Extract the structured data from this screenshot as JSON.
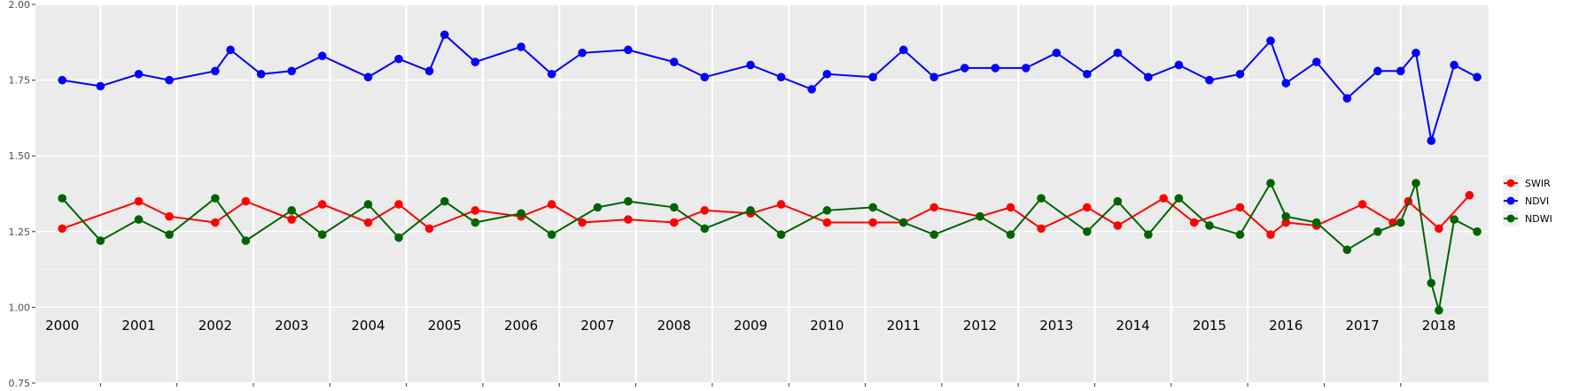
{
  "chart_data": {
    "type": "line",
    "title": "",
    "xlabel": "",
    "ylabel": "",
    "xlim": [
      1999.65,
      2018.65
    ],
    "ylim": [
      0.75,
      2.0
    ],
    "yticks": [
      0.75,
      1.0,
      1.25,
      1.5,
      1.75,
      2.0
    ],
    "ytick_labels": [
      "0.75",
      "1.00",
      "1.25",
      "1.50",
      "1.75",
      "2.00"
    ],
    "year_labels": [
      "2000",
      "2001",
      "2002",
      "2003",
      "2004",
      "2005",
      "2006",
      "2007",
      "2008",
      "2009",
      "2010",
      "2011",
      "2012",
      "2013",
      "2014",
      "2015",
      "2016",
      "2017",
      "2018"
    ],
    "year_label_positions": [
      2000,
      2001,
      2002,
      2003,
      2004,
      2005,
      2006,
      2007,
      2008,
      2009,
      2010,
      2011,
      2012,
      2013,
      2014,
      2015,
      2016,
      2017,
      2018
    ],
    "year_boundaries": [
      2000.5,
      2001.5,
      2002.5,
      2003.5,
      2004.5,
      2005.5,
      2006.5,
      2007.5,
      2008.5,
      2009.5,
      2010.5,
      2011.5,
      2012.5,
      2013.5,
      2014.5,
      2015.5,
      2016.5,
      2017.5
    ],
    "grid": true,
    "legend_position": "right",
    "series": [
      {
        "name": "SWIR",
        "color": "#ff0000",
        "x": [
          2000.0,
          2001.0,
          2001.4,
          2002.0,
          2002.4,
          2003.0,
          2003.4,
          2004.0,
          2004.4,
          2004.8,
          2005.4,
          2006.0,
          2006.4,
          2006.8,
          2007.4,
          2008.0,
          2008.4,
          2009.0,
          2009.4,
          2010.0,
          2010.6,
          2011.0,
          2011.4,
          2012.0,
          2012.4,
          2012.8,
          2013.4,
          2013.8,
          2014.4,
          2014.8,
          2015.4,
          2015.8,
          2016.0,
          2016.4,
          2017.0,
          2017.4,
          2017.6,
          2018.0,
          2018.4
        ],
        "y": [
          1.26,
          1.35,
          1.3,
          1.28,
          1.35,
          1.29,
          1.34,
          1.28,
          1.34,
          1.26,
          1.32,
          1.3,
          1.34,
          1.28,
          1.29,
          1.28,
          1.32,
          1.31,
          1.34,
          1.28,
          1.28,
          1.28,
          1.33,
          1.3,
          1.33,
          1.26,
          1.33,
          1.27,
          1.36,
          1.28,
          1.33,
          1.24,
          1.28,
          1.27,
          1.34,
          1.28,
          1.35,
          1.26,
          1.37
        ]
      },
      {
        "name": "NDVI",
        "color": "#0000ff",
        "x": [
          2000.0,
          2000.5,
          2001.0,
          2001.4,
          2002.0,
          2002.2,
          2002.6,
          2003.0,
          2003.4,
          2004.0,
          2004.4,
          2004.8,
          2005.0,
          2005.4,
          2006.0,
          2006.4,
          2006.8,
          2007.4,
          2008.0,
          2008.4,
          2009.0,
          2009.4,
          2009.8,
          2010.0,
          2010.6,
          2011.0,
          2011.4,
          2011.8,
          2012.2,
          2012.6,
          2013.0,
          2013.4,
          2013.8,
          2014.2,
          2014.6,
          2015.0,
          2015.4,
          2015.8,
          2016.0,
          2016.4,
          2016.8,
          2017.2,
          2017.5,
          2017.7,
          2017.9,
          2018.2,
          2018.5
        ],
        "y": [
          1.75,
          1.73,
          1.77,
          1.75,
          1.78,
          1.85,
          1.77,
          1.78,
          1.83,
          1.76,
          1.82,
          1.78,
          1.9,
          1.81,
          1.86,
          1.77,
          1.84,
          1.85,
          1.81,
          1.76,
          1.8,
          1.76,
          1.72,
          1.77,
          1.76,
          1.85,
          1.76,
          1.79,
          1.79,
          1.79,
          1.84,
          1.77,
          1.84,
          1.76,
          1.8,
          1.75,
          1.77,
          1.88,
          1.74,
          1.81,
          1.69,
          1.78,
          1.78,
          1.84,
          1.55,
          1.8,
          1.76
        ]
      },
      {
        "name": "NDWI",
        "color": "#006400",
        "x": [
          2000.0,
          2000.5,
          2001.0,
          2001.4,
          2002.0,
          2002.4,
          2003.0,
          2003.4,
          2004.0,
          2004.4,
          2005.0,
          2005.4,
          2006.0,
          2006.4,
          2007.0,
          2007.4,
          2008.0,
          2008.4,
          2009.0,
          2009.4,
          2010.0,
          2010.6,
          2011.0,
          2011.4,
          2012.0,
          2012.4,
          2012.8,
          2013.4,
          2013.8,
          2014.2,
          2014.6,
          2015.0,
          2015.4,
          2015.8,
          2016.0,
          2016.4,
          2016.8,
          2017.2,
          2017.5,
          2017.7,
          2017.9,
          2018.0,
          2018.2,
          2018.5
        ],
        "y": [
          1.36,
          1.22,
          1.29,
          1.24,
          1.36,
          1.22,
          1.32,
          1.24,
          1.34,
          1.23,
          1.35,
          1.28,
          1.31,
          1.24,
          1.33,
          1.35,
          1.33,
          1.26,
          1.32,
          1.24,
          1.32,
          1.33,
          1.28,
          1.24,
          1.3,
          1.24,
          1.36,
          1.25,
          1.35,
          1.24,
          1.36,
          1.27,
          1.24,
          1.41,
          1.3,
          1.28,
          1.19,
          1.25,
          1.28,
          1.41,
          1.08,
          0.99,
          1.29,
          1.25
        ]
      }
    ]
  }
}
